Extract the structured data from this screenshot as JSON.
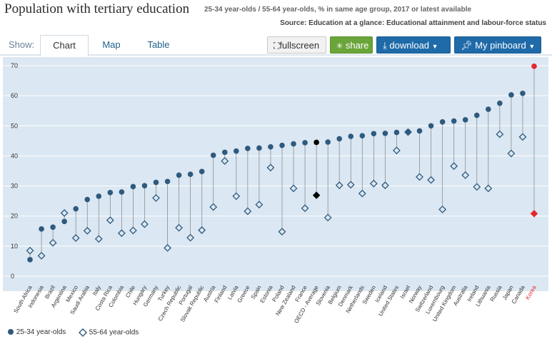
{
  "header": {
    "title": "Population with tertiary education",
    "subtitle": "25-34 year-olds / 55-64 year-olds, % in same age group, 2017 or latest available",
    "source": "Source: Education at a glance: Educational attainment and labour-force status"
  },
  "toolbar": {
    "show_label": "Show:",
    "tabs": [
      "Chart",
      "Map",
      "Table"
    ],
    "fullscreen_label": "fullscreen",
    "share_label": "share",
    "download_label": "download",
    "pinboard_label": "My pinboard"
  },
  "colors": {
    "series_young": "#2e5a7e",
    "series_old": "#2e5a7e",
    "average": "#000000",
    "highlight": "#e4262c",
    "plot_bg": "#dbe7f2",
    "grid": "#ffffff"
  },
  "chart_data": {
    "type": "scatter",
    "title": "Population with tertiary education",
    "xlabel": "",
    "ylabel": "",
    "ylim": [
      0,
      70
    ],
    "yticks": [
      0,
      10,
      20,
      30,
      40,
      50,
      60,
      70
    ],
    "grid": true,
    "legend_position": "bottom-left",
    "categories": [
      "South Africa",
      "Indonesia",
      "Brazil",
      "Argentina",
      "Mexico",
      "Saudi Arabia",
      "Italy",
      "Costa Rica",
      "Colombia",
      "Chile",
      "Hungary",
      "Germany",
      "Turkey",
      "Czech Republic",
      "Portugal",
      "Slovak Republic",
      "Austria",
      "Finland",
      "Latvia",
      "Greece",
      "Spain",
      "Estonia",
      "Poland",
      "New Zealand",
      "France",
      "OECD - Average",
      "Slovenia",
      "Belgium",
      "Denmark",
      "Netherlands",
      "Sweden",
      "Iceland",
      "United States",
      "Israel",
      "Norway",
      "Switzerland",
      "Luxembourg",
      "United Kingdom",
      "Australia",
      "Ireland",
      "Lithuania",
      "Russia",
      "Japan",
      "Canada",
      "Korea"
    ],
    "highlight_categories": [
      "Korea"
    ],
    "average_category": "OECD - Average",
    "series": [
      {
        "name": "25-34 year-olds",
        "marker": "circle",
        "values": [
          5.5,
          15.7,
          16.3,
          18.2,
          22.4,
          25.5,
          26.6,
          27.8,
          28,
          29.8,
          30.1,
          31.2,
          31.5,
          33.6,
          33.9,
          34.8,
          40.2,
          41.2,
          41.6,
          42.5,
          42.6,
          43,
          43.5,
          44,
          44.4,
          44.5,
          44.6,
          45.7,
          46.5,
          46.7,
          47.4,
          47.5,
          47.8,
          48,
          48.3,
          50,
          51.3,
          51.6,
          52,
          53.5,
          55.5,
          57.5,
          60.3,
          60.8,
          69.8
        ]
      },
      {
        "name": "55-64 year-olds",
        "marker": "diamond",
        "values": [
          8.5,
          6.8,
          11.1,
          21,
          12.7,
          15.1,
          12.4,
          18.6,
          14.3,
          15.2,
          17.3,
          26,
          9.4,
          16.1,
          12.8,
          15.3,
          23,
          38.3,
          26.6,
          21.6,
          23.8,
          36.1,
          14.8,
          29.2,
          22.6,
          26.9,
          19.5,
          30.2,
          30.4,
          27.5,
          30.8,
          30.2,
          41.8,
          47.9,
          33,
          32,
          22.2,
          36.6,
          33.6,
          29.7,
          29.2,
          47.2,
          40.8,
          46.3,
          20.8
        ]
      }
    ]
  }
}
